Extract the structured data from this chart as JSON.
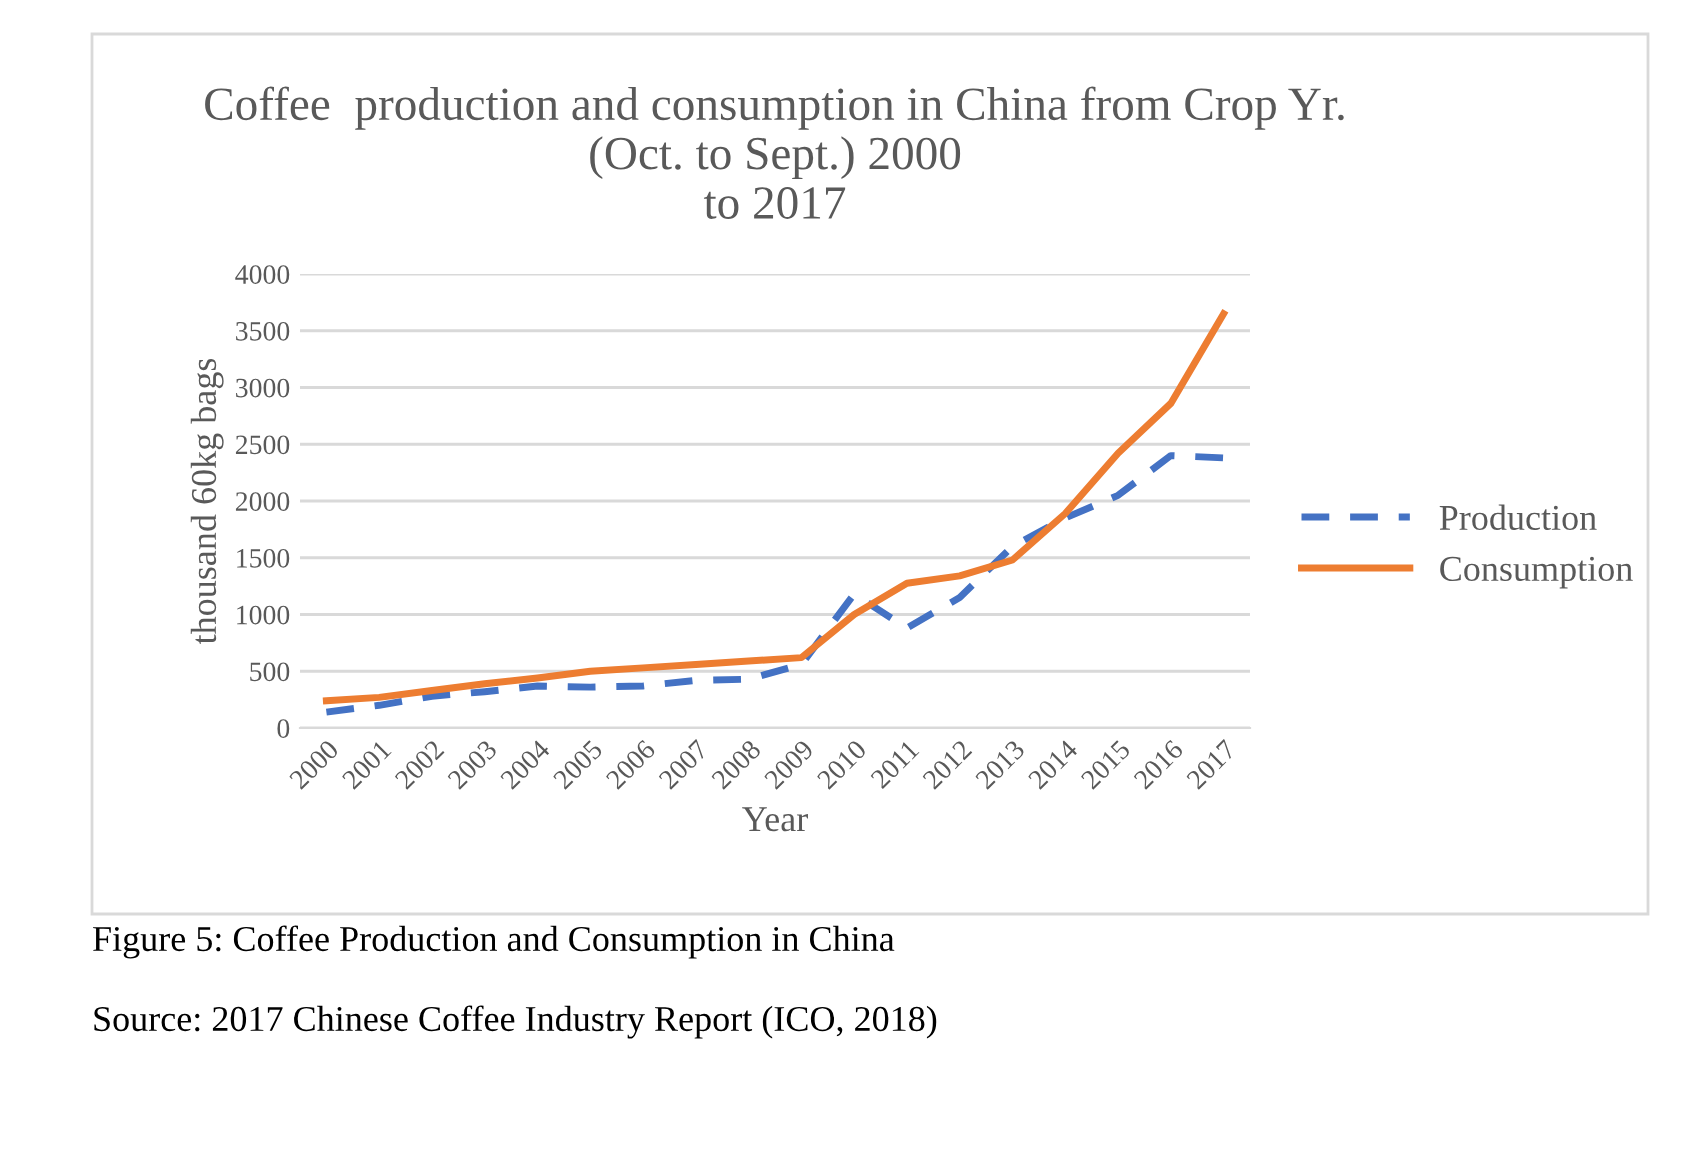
{
  "chart_data": {
    "type": "line",
    "title": "Coffee  production and consumption in China from Crop Yr.\n(Oct. to Sept.) 2000\nto 2017",
    "xlabel": "Year",
    "ylabel": "thousand 60kg bags",
    "categories": [
      "2000",
      "2001",
      "2002",
      "2003",
      "2004",
      "2005",
      "2006",
      "2007",
      "2008",
      "2009",
      "2010",
      "2011",
      "2012",
      "2013",
      "2014",
      "2015",
      "2016",
      "2017"
    ],
    "series": [
      {
        "name": "Production",
        "color": "#4472c4",
        "line_style": "dashed",
        "values": [
          140,
          200,
          280,
          320,
          370,
          360,
          370,
          420,
          430,
          560,
          1180,
          880,
          1150,
          1600,
          1850,
          2050,
          2400,
          2380
        ]
      },
      {
        "name": "Consumption",
        "color": "#ed7d31",
        "line_style": "solid",
        "values": [
          240,
          270,
          330,
          390,
          440,
          500,
          530,
          560,
          590,
          620,
          1000,
          1275,
          1340,
          1480,
          1890,
          2420,
          2860,
          3650
        ]
      }
    ],
    "ylim": [
      0,
      4000
    ],
    "yticks": [
      0,
      500,
      1000,
      1500,
      2000,
      2500,
      3000,
      3500,
      4000
    ],
    "grid": "y",
    "legend": "right",
    "marker": "none",
    "annotations": [
      "Figure 5: Coffee Production and Consumption in China",
      "Source: 2017 Chinese Coffee Industry Report (ICO, 2018)"
    ]
  }
}
